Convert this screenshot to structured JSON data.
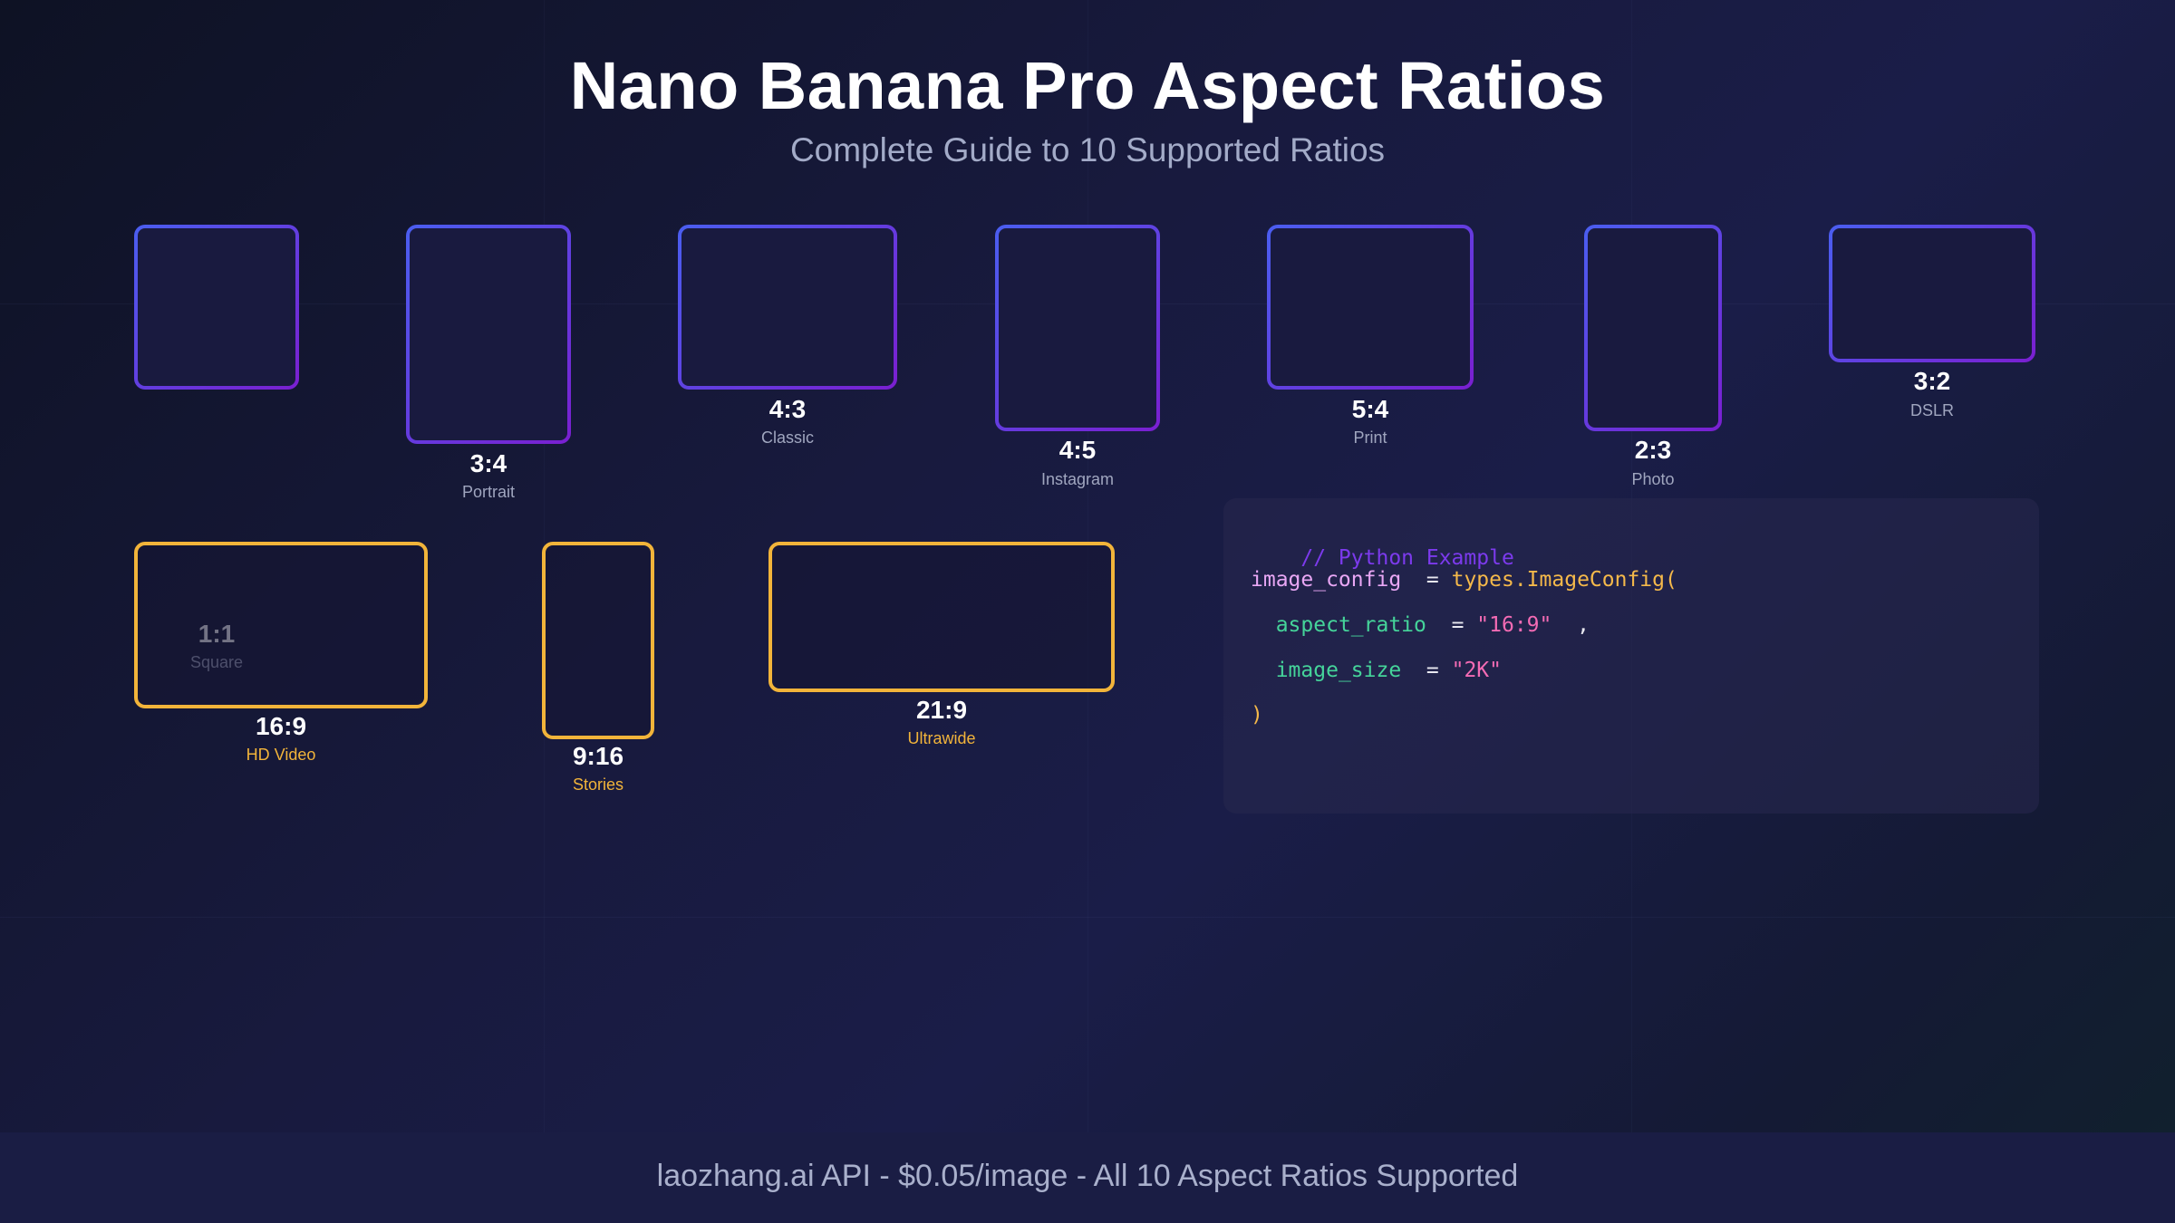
{
  "header": {
    "title": "Nano Banana Pro Aspect Ratios",
    "subtitle": "Complete Guide to 10 Supported Ratios"
  },
  "ratios": [
    {
      "label": "1:1",
      "desc": "Square",
      "style": "gradient"
    },
    {
      "label": "3:4",
      "desc": "Portrait",
      "style": "gradient"
    },
    {
      "label": "4:3",
      "desc": "Classic",
      "style": "gradient"
    },
    {
      "label": "4:5",
      "desc": "Instagram",
      "style": "gradient"
    },
    {
      "label": "5:4",
      "desc": "Print",
      "style": "gradient"
    },
    {
      "label": "2:3",
      "desc": "Photo",
      "style": "gradient"
    },
    {
      "label": "3:2",
      "desc": "DSLR",
      "style": "gradient"
    },
    {
      "label": "16:9",
      "desc": "HD Video",
      "style": "highlight"
    },
    {
      "label": "9:16",
      "desc": "Stories",
      "style": "highlight"
    },
    {
      "label": "21:9",
      "desc": "Ultrawide",
      "style": "highlight"
    }
  ],
  "code": {
    "comment": "// Python Example",
    "line1_var": "image_config",
    "line1_op": "=",
    "line1_func": "types.ImageConfig(",
    "line2_key": "aspect_ratio",
    "line2_op": "=",
    "line2_val": "\"16:9\"",
    "line2_comma": ",",
    "line3_key": "image_size",
    "line3_op": "=",
    "line3_val": "\"2K\"",
    "line4_close": ")"
  },
  "footer": {
    "text": "laozhang.ai API - $0.05/image - All 10 Aspect Ratios Supported"
  },
  "colors": {
    "gradient_start": "#4a5ef0",
    "gradient_end": "#7a1fd0",
    "highlight": "#f2b43a",
    "background": "#181a3e"
  }
}
